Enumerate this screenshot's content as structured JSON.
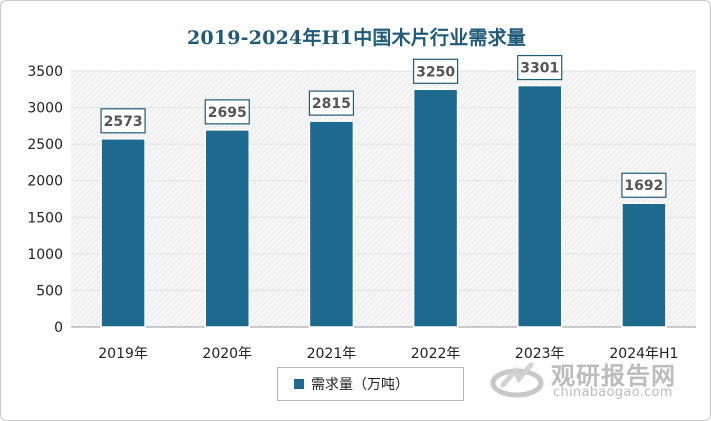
{
  "chart_data": {
    "type": "bar",
    "title": "2019-2024年H1中国木片行业需求量",
    "categories": [
      "2019年",
      "2020年",
      "2021年",
      "2022年",
      "2023年",
      "2024年H1"
    ],
    "series": [
      {
        "name": "需求量（万吨）",
        "values": [
          2573,
          2695,
          2815,
          3250,
          3301,
          1692
        ]
      }
    ],
    "ylim": [
      0,
      3500
    ],
    "yticks": [
      0,
      500,
      1000,
      1500,
      2000,
      2500,
      3000,
      3500
    ],
    "grid": true,
    "legend_position": "bottom",
    "colors": {
      "bar": "#1f6a8f",
      "label_border": "#1f5a78",
      "title": "#1f5a78"
    }
  },
  "watermark": {
    "name_cn": "观研报告网",
    "name_en": "chinabaogao.com"
  }
}
